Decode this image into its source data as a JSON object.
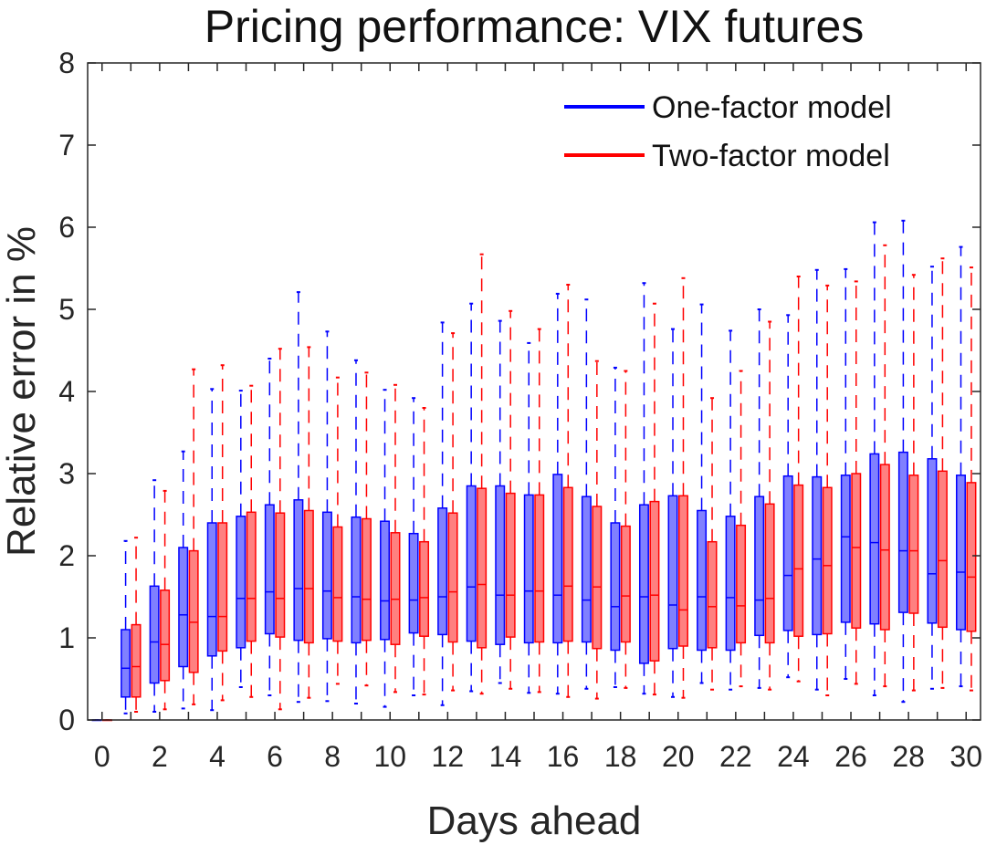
{
  "chart_data": {
    "type": "box",
    "title": "Pricing performance: VIX futures",
    "xlabel": "Days ahead",
    "ylabel": "Relative error in %",
    "xlim": [
      -0.5,
      30.5
    ],
    "ylim": [
      0,
      8
    ],
    "xticks": [
      0,
      2,
      4,
      6,
      8,
      10,
      12,
      14,
      16,
      18,
      20,
      22,
      24,
      26,
      28,
      30
    ],
    "yticks": [
      0,
      1,
      2,
      3,
      4,
      5,
      6,
      7,
      8
    ],
    "legend_position": "top-right",
    "colors": {
      "one_factor": "#0000ff",
      "two_factor": "#ff0000",
      "one_fill": "#8080ff",
      "two_fill": "#ff8080"
    },
    "series": [
      {
        "name": "One-factor model",
        "color": "#0000ff",
        "boxes": [
          {
            "day": 0,
            "wlow": 0,
            "q1": 0,
            "median": 0,
            "q3": 0,
            "whigh": 0
          },
          {
            "day": 1,
            "wlow": 0.08,
            "q1": 0.28,
            "median": 0.63,
            "q3": 1.1,
            "whigh": 2.18
          },
          {
            "day": 2,
            "wlow": 0.1,
            "q1": 0.45,
            "median": 0.95,
            "q3": 1.63,
            "whigh": 2.92
          },
          {
            "day": 3,
            "wlow": 0.14,
            "q1": 0.65,
            "median": 1.28,
            "q3": 2.1,
            "whigh": 3.27
          },
          {
            "day": 4,
            "wlow": 0.12,
            "q1": 0.78,
            "median": 1.26,
            "q3": 2.4,
            "whigh": 4.03
          },
          {
            "day": 5,
            "wlow": 0.4,
            "q1": 0.88,
            "median": 1.48,
            "q3": 2.48,
            "whigh": 4.01
          },
          {
            "day": 6,
            "wlow": 0.3,
            "q1": 1.05,
            "median": 1.56,
            "q3": 2.62,
            "whigh": 4.4
          },
          {
            "day": 7,
            "wlow": 0.22,
            "q1": 0.97,
            "median": 1.6,
            "q3": 2.68,
            "whigh": 5.21
          },
          {
            "day": 8,
            "wlow": 0.23,
            "q1": 0.99,
            "median": 1.57,
            "q3": 2.53,
            "whigh": 4.73
          },
          {
            "day": 9,
            "wlow": 0.2,
            "q1": 0.94,
            "median": 1.5,
            "q3": 2.47,
            "whigh": 4.38
          },
          {
            "day": 10,
            "wlow": 0.16,
            "q1": 0.98,
            "median": 1.45,
            "q3": 2.42,
            "whigh": 4.02
          },
          {
            "day": 11,
            "wlow": 0.3,
            "q1": 1.06,
            "median": 1.46,
            "q3": 2.27,
            "whigh": 3.92
          },
          {
            "day": 12,
            "wlow": 0.18,
            "q1": 1.04,
            "median": 1.5,
            "q3": 2.58,
            "whigh": 4.84
          },
          {
            "day": 13,
            "wlow": 0.35,
            "q1": 0.96,
            "median": 1.62,
            "q3": 2.85,
            "whigh": 5.07
          },
          {
            "day": 14,
            "wlow": 0.45,
            "q1": 0.92,
            "median": 1.52,
            "q3": 2.85,
            "whigh": 4.86
          },
          {
            "day": 15,
            "wlow": 0.33,
            "q1": 0.94,
            "median": 1.57,
            "q3": 2.74,
            "whigh": 4.59
          },
          {
            "day": 16,
            "wlow": 0.32,
            "q1": 0.94,
            "median": 1.52,
            "q3": 2.99,
            "whigh": 5.19
          },
          {
            "day": 17,
            "wlow": 0.38,
            "q1": 0.95,
            "median": 1.46,
            "q3": 2.72,
            "whigh": 5.12
          },
          {
            "day": 18,
            "wlow": 0.4,
            "q1": 0.85,
            "median": 1.38,
            "q3": 2.4,
            "whigh": 4.29
          },
          {
            "day": 19,
            "wlow": 0.32,
            "q1": 0.69,
            "median": 1.5,
            "q3": 2.62,
            "whigh": 5.32
          },
          {
            "day": 20,
            "wlow": 0.28,
            "q1": 0.87,
            "median": 1.4,
            "q3": 2.73,
            "whigh": 4.76
          },
          {
            "day": 21,
            "wlow": 0.45,
            "q1": 0.85,
            "median": 1.5,
            "q3": 2.55,
            "whigh": 5.06
          },
          {
            "day": 22,
            "wlow": 0.37,
            "q1": 0.85,
            "median": 1.49,
            "q3": 2.48,
            "whigh": 4.74
          },
          {
            "day": 23,
            "wlow": 0.39,
            "q1": 1.03,
            "median": 1.46,
            "q3": 2.72,
            "whigh": 5.0
          },
          {
            "day": 24,
            "wlow": 0.52,
            "q1": 1.09,
            "median": 1.76,
            "q3": 2.97,
            "whigh": 4.93
          },
          {
            "day": 25,
            "wlow": 0.37,
            "q1": 1.04,
            "median": 1.96,
            "q3": 2.96,
            "whigh": 5.48
          },
          {
            "day": 26,
            "wlow": 0.5,
            "q1": 1.19,
            "median": 2.23,
            "q3": 2.98,
            "whigh": 5.49
          },
          {
            "day": 27,
            "wlow": 0.3,
            "q1": 1.17,
            "median": 2.16,
            "q3": 3.24,
            "whigh": 6.06
          },
          {
            "day": 28,
            "wlow": 0.22,
            "q1": 1.31,
            "median": 2.06,
            "q3": 3.26,
            "whigh": 6.08
          },
          {
            "day": 29,
            "wlow": 0.38,
            "q1": 1.18,
            "median": 1.78,
            "q3": 3.18,
            "whigh": 5.52
          },
          {
            "day": 30,
            "wlow": 0.41,
            "q1": 1.1,
            "median": 1.8,
            "q3": 2.98,
            "whigh": 5.76
          }
        ]
      },
      {
        "name": "Two-factor model",
        "color": "#ff0000",
        "boxes": [
          {
            "day": 0,
            "wlow": 0,
            "q1": 0,
            "median": 0,
            "q3": 0,
            "whigh": 0
          },
          {
            "day": 1,
            "wlow": 0.1,
            "q1": 0.28,
            "median": 0.65,
            "q3": 1.16,
            "whigh": 2.22
          },
          {
            "day": 2,
            "wlow": 0.13,
            "q1": 0.48,
            "median": 0.92,
            "q3": 1.58,
            "whigh": 2.79
          },
          {
            "day": 3,
            "wlow": 0.19,
            "q1": 0.58,
            "median": 1.19,
            "q3": 2.06,
            "whigh": 4.27
          },
          {
            "day": 4,
            "wlow": 0.24,
            "q1": 0.84,
            "median": 1.26,
            "q3": 2.4,
            "whigh": 4.32
          },
          {
            "day": 5,
            "wlow": 0.28,
            "q1": 0.96,
            "median": 1.48,
            "q3": 2.53,
            "whigh": 4.07
          },
          {
            "day": 6,
            "wlow": 0.13,
            "q1": 1.01,
            "median": 1.48,
            "q3": 2.52,
            "whigh": 4.52
          },
          {
            "day": 7,
            "wlow": 0.27,
            "q1": 0.94,
            "median": 1.6,
            "q3": 2.55,
            "whigh": 4.54
          },
          {
            "day": 8,
            "wlow": 0.44,
            "q1": 0.96,
            "median": 1.49,
            "q3": 2.35,
            "whigh": 4.17
          },
          {
            "day": 9,
            "wlow": 0.42,
            "q1": 0.97,
            "median": 1.47,
            "q3": 2.45,
            "whigh": 4.23
          },
          {
            "day": 10,
            "wlow": 0.34,
            "q1": 0.92,
            "median": 1.47,
            "q3": 2.28,
            "whigh": 4.08
          },
          {
            "day": 11,
            "wlow": 0.31,
            "q1": 1.02,
            "median": 1.49,
            "q3": 2.17,
            "whigh": 3.8
          },
          {
            "day": 12,
            "wlow": 0.36,
            "q1": 0.95,
            "median": 1.56,
            "q3": 2.52,
            "whigh": 4.71
          },
          {
            "day": 13,
            "wlow": 0.32,
            "q1": 0.88,
            "median": 1.65,
            "q3": 2.82,
            "whigh": 5.67
          },
          {
            "day": 14,
            "wlow": 0.38,
            "q1": 1.01,
            "median": 1.52,
            "q3": 2.76,
            "whigh": 4.98
          },
          {
            "day": 15,
            "wlow": 0.34,
            "q1": 0.95,
            "median": 1.57,
            "q3": 2.74,
            "whigh": 4.76
          },
          {
            "day": 16,
            "wlow": 0.28,
            "q1": 0.96,
            "median": 1.63,
            "q3": 2.83,
            "whigh": 5.3
          },
          {
            "day": 17,
            "wlow": 0.26,
            "q1": 0.87,
            "median": 1.62,
            "q3": 2.6,
            "whigh": 4.37
          },
          {
            "day": 18,
            "wlow": 0.39,
            "q1": 0.95,
            "median": 1.51,
            "q3": 2.36,
            "whigh": 4.25
          },
          {
            "day": 19,
            "wlow": 0.31,
            "q1": 0.72,
            "median": 1.52,
            "q3": 2.66,
            "whigh": 5.07
          },
          {
            "day": 20,
            "wlow": 0.27,
            "q1": 0.9,
            "median": 1.34,
            "q3": 2.73,
            "whigh": 5.38
          },
          {
            "day": 21,
            "wlow": 0.37,
            "q1": 0.88,
            "median": 1.38,
            "q3": 2.17,
            "whigh": 3.92
          },
          {
            "day": 22,
            "wlow": 0.41,
            "q1": 0.94,
            "median": 1.39,
            "q3": 2.37,
            "whigh": 4.25
          },
          {
            "day": 23,
            "wlow": 0.37,
            "q1": 0.94,
            "median": 1.48,
            "q3": 2.63,
            "whigh": 4.85
          },
          {
            "day": 24,
            "wlow": 0.47,
            "q1": 1.02,
            "median": 1.84,
            "q3": 2.86,
            "whigh": 5.4
          },
          {
            "day": 25,
            "wlow": 0.3,
            "q1": 1.05,
            "median": 1.88,
            "q3": 2.83,
            "whigh": 5.29
          },
          {
            "day": 26,
            "wlow": 0.44,
            "q1": 1.12,
            "median": 2.1,
            "q3": 3.0,
            "whigh": 5.34
          },
          {
            "day": 27,
            "wlow": 0.41,
            "q1": 1.1,
            "median": 2.07,
            "q3": 3.11,
            "whigh": 5.78
          },
          {
            "day": 28,
            "wlow": 0.36,
            "q1": 1.3,
            "median": 2.06,
            "q3": 2.98,
            "whigh": 5.42
          },
          {
            "day": 29,
            "wlow": 0.39,
            "q1": 1.13,
            "median": 1.94,
            "q3": 3.03,
            "whigh": 5.62
          },
          {
            "day": 30,
            "wlow": 0.36,
            "q1": 1.08,
            "median": 1.74,
            "q3": 2.89,
            "whigh": 5.51
          }
        ]
      }
    ]
  }
}
